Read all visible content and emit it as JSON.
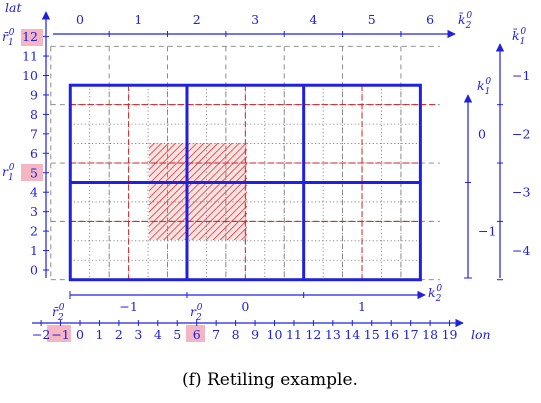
{
  "axes": {
    "lon_label": "lon",
    "lat_label": "lat",
    "lon_ticks": [
      "−2",
      "−1",
      "0",
      "1",
      "2",
      "3",
      "4",
      "5",
      "6",
      "7",
      "8",
      "9",
      "10",
      "11",
      "12",
      "13",
      "14",
      "15",
      "16",
      "17",
      "18",
      "19"
    ],
    "lat_ticks": [
      "0",
      "1",
      "2",
      "3",
      "4",
      "5",
      "6",
      "7",
      "8",
      "9",
      "10",
      "11",
      "12"
    ],
    "highlighted_lon": [
      "−1",
      "6"
    ],
    "highlighted_lat": [
      "5",
      "12"
    ]
  },
  "k2": {
    "label_top": "k̄",
    "label_bottom": "k",
    "sub": "2",
    "sup": "0",
    "top_ticks": [
      "0",
      "1",
      "2",
      "3",
      "4",
      "5",
      "6"
    ],
    "bottom_ticks": [
      "−1",
      "0",
      "1"
    ]
  },
  "k1": {
    "label_right": "k̄",
    "label_inner": "k",
    "sub": "1",
    "sup": "0",
    "right_ticks": [
      "−1",
      "−2",
      "−3",
      "−4"
    ],
    "inner_ticks": [
      "0",
      "−1"
    ]
  },
  "origins": {
    "r1_bar": "r̄",
    "r1": "r",
    "r2_bar": "r̄",
    "r2": "r",
    "sub1": "1",
    "sub2": "2",
    "sup": "0"
  },
  "caption": "(f) Retiling example.",
  "colors": {
    "blue": "#2020e0",
    "red": "#d42020",
    "gray": "#808080",
    "highlight": "#f4b6c2"
  }
}
